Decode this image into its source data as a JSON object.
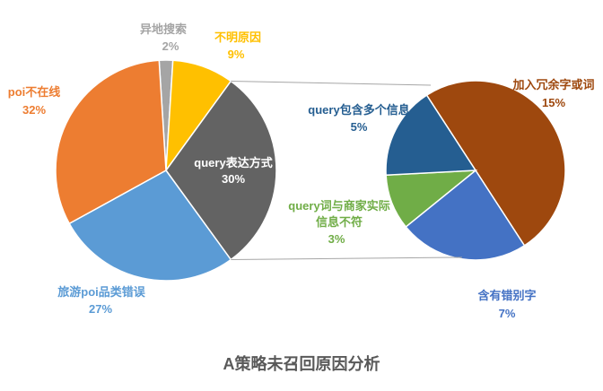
{
  "chart_data": {
    "type": "pie-of-pie",
    "title": "A策略未召回原因分析",
    "categories": [
      "异地搜索",
      "不明原因",
      "query表达方式",
      "旅游poi品类错误",
      "poi不在线"
    ],
    "values": [
      2,
      9,
      30,
      27,
      32
    ],
    "value_labels": [
      "2%",
      "9%",
      "30%",
      "27%",
      "32%"
    ],
    "colors": [
      "#a5a5a5",
      "#ffc000",
      "#636363",
      "#5b9bd5",
      "#ed7d31"
    ],
    "breakout_index": 2,
    "sub_categories": [
      "加入冗余字或词",
      "含有错别字",
      "query词与商家实际信息不符",
      "query包含多个信息"
    ],
    "sub_values": [
      15,
      7,
      3,
      5
    ],
    "sub_value_labels": [
      "15%",
      "7%",
      "3%",
      "5%"
    ],
    "sub_colors": [
      "#9e480e",
      "#4472c4",
      "#70ad47",
      "#255e91"
    ]
  }
}
